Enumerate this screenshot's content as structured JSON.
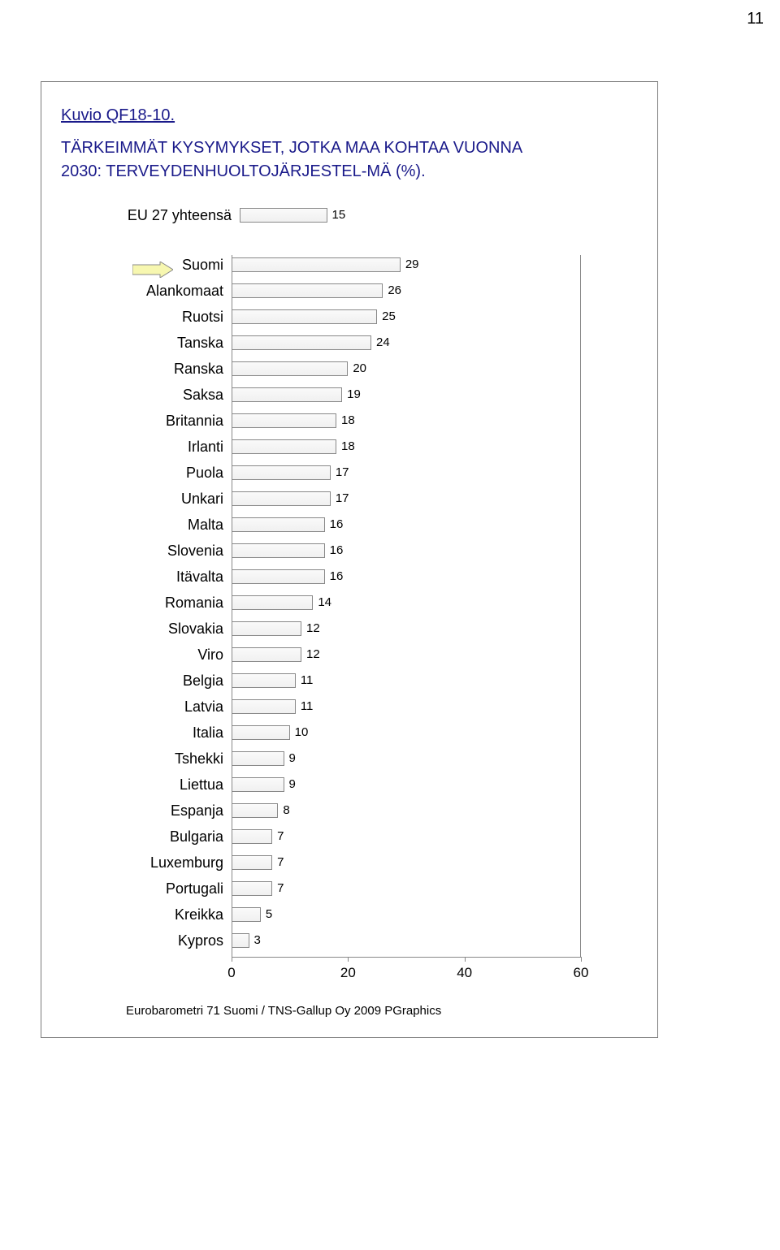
{
  "page_number": "11",
  "chart": {
    "type": "bar",
    "id_label": "Kuvio QF18-10.",
    "title": "TÄRKEIMMÄT KYSYMYKSET, JOTKA MAA KOHTAA VUONNA 2030: TERVEYDENHUOLTOJÄRJESTEL-MÄ (%).",
    "summary": {
      "label": "EU 27 yhteensä",
      "value": 15
    },
    "xaxis": {
      "min": 0,
      "max": 60,
      "ticks": [
        0,
        20,
        40,
        60
      ]
    },
    "bar_fill_top": "#fafafa",
    "bar_fill_bottom": "#f0f0f0",
    "bar_border": "#888888",
    "title_color": "#1a1a8a",
    "label_fontsize": 18,
    "value_fontsize": 15,
    "highlight_pointer_color": "#f7f7b0",
    "highlight_pointer_border": "#888888",
    "countries": [
      {
        "label": "Suomi",
        "value": 29,
        "highlight": true
      },
      {
        "label": "Alankomaat",
        "value": 26
      },
      {
        "label": "Ruotsi",
        "value": 25
      },
      {
        "label": "Tanska",
        "value": 24
      },
      {
        "label": "Ranska",
        "value": 20
      },
      {
        "label": "Saksa",
        "value": 19
      },
      {
        "label": "Britannia",
        "value": 18
      },
      {
        "label": "Irlanti",
        "value": 18
      },
      {
        "label": "Puola",
        "value": 17
      },
      {
        "label": "Unkari",
        "value": 17
      },
      {
        "label": "Malta",
        "value": 16
      },
      {
        "label": "Slovenia",
        "value": 16
      },
      {
        "label": "Itävalta",
        "value": 16
      },
      {
        "label": "Romania",
        "value": 14
      },
      {
        "label": "Slovakia",
        "value": 12
      },
      {
        "label": "Viro",
        "value": 12
      },
      {
        "label": "Belgia",
        "value": 11
      },
      {
        "label": "Latvia",
        "value": 11
      },
      {
        "label": "Italia",
        "value": 10
      },
      {
        "label": "Tshekki",
        "value": 9
      },
      {
        "label": "Liettua",
        "value": 9
      },
      {
        "label": "Espanja",
        "value": 8
      },
      {
        "label": "Bulgaria",
        "value": 7
      },
      {
        "label": "Luxemburg",
        "value": 7
      },
      {
        "label": "Portugali",
        "value": 7
      },
      {
        "label": "Kreikka",
        "value": 5
      },
      {
        "label": "Kypros",
        "value": 3
      }
    ],
    "footnote": "Eurobarometri 71 Suomi / TNS-Gallup Oy 2009  PGraphics"
  }
}
